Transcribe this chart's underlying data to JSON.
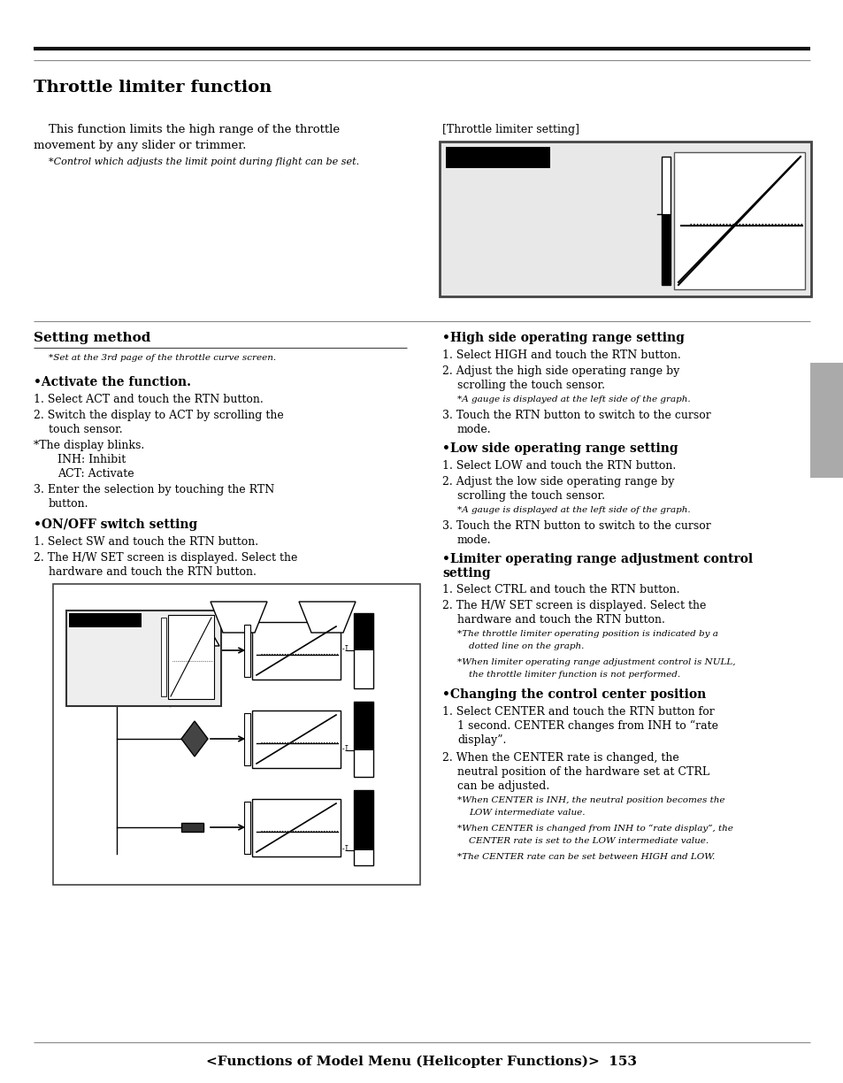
{
  "page_bg": "#ffffff",
  "title": "Throttle limiter function",
  "footer_text": "<Functions of Model Menu (Helicopter Functions)>  153",
  "screen_label": "[Throttle limiter setting]",
  "setting_method": "Setting method",
  "pw": 954,
  "ph": 1224
}
